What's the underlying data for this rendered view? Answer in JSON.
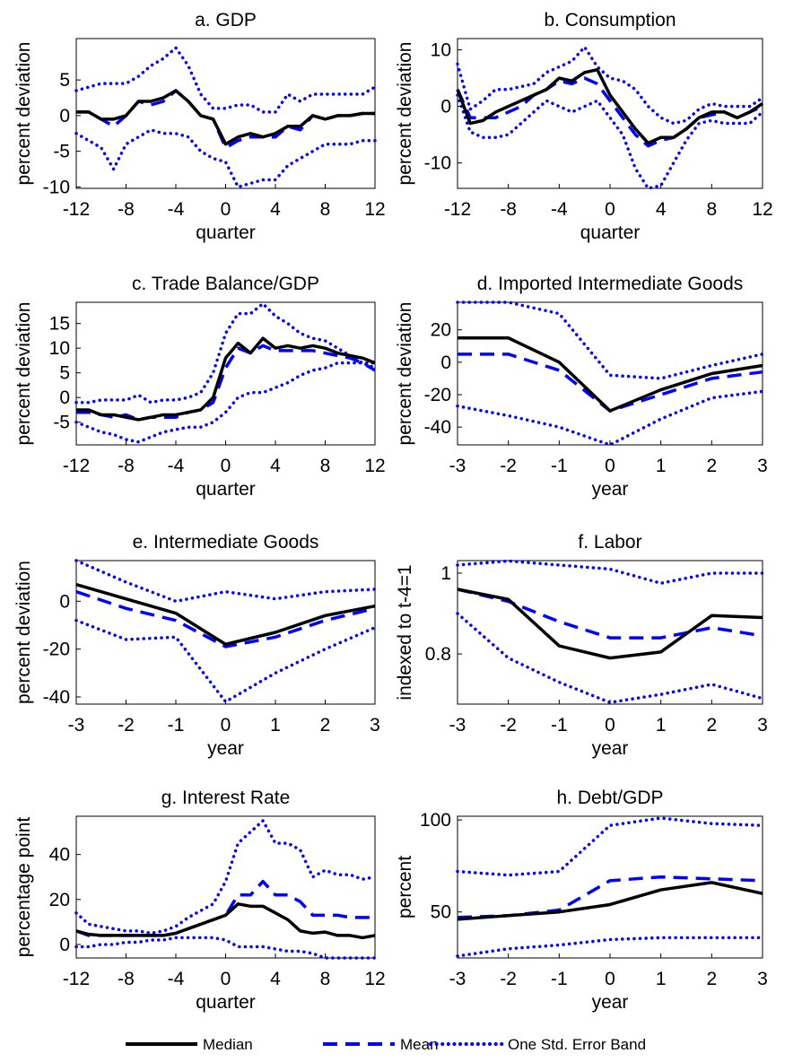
{
  "legend": [
    {
      "name": "Median",
      "color": "#000000",
      "dash": "solid"
    },
    {
      "name": "Mean",
      "color": "#0000ff",
      "dash": "dashed"
    },
    {
      "name": "One Std. Error Band",
      "color": "#0000ff",
      "dash": "dotted"
    }
  ],
  "chart_data": [
    {
      "type": "line",
      "title": "a. GDP",
      "xlabel": "quarter",
      "ylabel": "percent deviation",
      "x": [
        -12,
        -11,
        -10,
        -9,
        -8,
        -7,
        -6,
        -5,
        -4,
        -3,
        -2,
        -1,
        0,
        1,
        2,
        3,
        4,
        5,
        6,
        7,
        8,
        9,
        10,
        11,
        12
      ],
      "xlim": [
        -12,
        12
      ],
      "xticks": [
        -12,
        -8,
        -4,
        0,
        4,
        8,
        12
      ],
      "ylim": [
        -10.2,
        10.8
      ],
      "yticks": [
        -10,
        -5,
        0,
        5
      ],
      "median": [
        0.5,
        0.5,
        -0.5,
        -0.5,
        0,
        2,
        2,
        2.5,
        3.5,
        2,
        0,
        -0.5,
        -4,
        -3,
        -2.5,
        -3,
        -2.5,
        -1.5,
        -1.5,
        0,
        -0.5,
        0,
        0,
        0.3,
        0.3
      ],
      "mean": [
        0.5,
        0.5,
        -0.5,
        -1.5,
        0,
        2,
        1.5,
        2,
        3.5,
        2,
        0,
        -0.5,
        -4.5,
        -3.5,
        -3,
        -3,
        -3,
        -1.5,
        -2,
        0,
        -0.5,
        0,
        0,
        0.3,
        0.3
      ],
      "band_upper": [
        3.5,
        4,
        4.5,
        4.5,
        4.5,
        5.5,
        7,
        8,
        9.5,
        7,
        3,
        1,
        1,
        1.5,
        1.5,
        0.5,
        0.5,
        3,
        2,
        3,
        3,
        3,
        3,
        3,
        4
      ],
      "band_lower": [
        -2.5,
        -3.5,
        -4.5,
        -7.5,
        -4,
        -3,
        -2,
        -2.5,
        -2.5,
        -3,
        -5,
        -6,
        -6.5,
        -10,
        -9.5,
        -9,
        -9,
        -7,
        -6,
        -5,
        -4,
        -4,
        -4,
        -3.5,
        -3.5
      ]
    },
    {
      "type": "line",
      "title": "b. Consumption",
      "xlabel": "quarter",
      "ylabel": "percent deviation",
      "x": [
        -12,
        -11,
        -10,
        -9,
        -8,
        -7,
        -6,
        -5,
        -4,
        -3,
        -2,
        -1,
        0,
        1,
        2,
        3,
        4,
        5,
        6,
        7,
        8,
        9,
        10,
        11,
        12
      ],
      "xlim": [
        -12,
        12
      ],
      "xticks": [
        -12,
        -8,
        -4,
        0,
        4,
        8,
        12
      ],
      "ylim": [
        -14.5,
        12
      ],
      "yticks": [
        -10,
        0,
        10
      ],
      "median": [
        3,
        -3,
        -2.5,
        -1,
        0,
        1,
        2,
        3,
        5,
        4.5,
        6,
        6.5,
        2,
        -1,
        -4,
        -6.5,
        -5.5,
        -5.5,
        -4,
        -2,
        -1,
        -1,
        -2,
        -1,
        0.5
      ],
      "mean": [
        3,
        -2,
        -2,
        -2,
        -1,
        0,
        2,
        3,
        4.5,
        4,
        5,
        4,
        1,
        -2,
        -5,
        -7,
        -6,
        -5.5,
        -4,
        -2,
        -1.5,
        -1,
        -2,
        -1,
        0
      ],
      "band_upper": [
        7.5,
        -0.5,
        1,
        3,
        3,
        3.5,
        4,
        6,
        7,
        8,
        10.5,
        7,
        5,
        4.5,
        3,
        0,
        -2,
        -3,
        -2.5,
        -0.5,
        0.5,
        0,
        0,
        0,
        1.5
      ],
      "band_lower": [
        2,
        -4.5,
        -5.5,
        -5.5,
        -5,
        -3,
        -1,
        1,
        0,
        -1,
        0,
        1,
        -2,
        -5,
        -11,
        -14.5,
        -14,
        -10,
        -6,
        -3,
        -2.5,
        -3,
        -3,
        -3,
        -1
      ]
    },
    {
      "type": "line",
      "title": "c. Trade Balance/GDP",
      "xlabel": "quarter",
      "ylabel": "percent deviation",
      "x": [
        -12,
        -11,
        -10,
        -9,
        -8,
        -7,
        -6,
        -5,
        -4,
        -3,
        -2,
        -1,
        0,
        1,
        2,
        3,
        4,
        5,
        6,
        7,
        8,
        9,
        10,
        11,
        12
      ],
      "xlim": [
        -12,
        12
      ],
      "xticks": [
        -12,
        -8,
        -4,
        0,
        4,
        8,
        12
      ],
      "ylim": [
        -9.6,
        19.3
      ],
      "yticks": [
        -5,
        0,
        5,
        10,
        15
      ],
      "median": [
        -2.5,
        -2.5,
        -3.5,
        -3.5,
        -4,
        -4.5,
        -4,
        -3.5,
        -3.5,
        -3,
        -2.5,
        0,
        8,
        11,
        9,
        12,
        10,
        10.5,
        10,
        10.5,
        10,
        9,
        8.5,
        8,
        7
      ],
      "mean": [
        -3,
        -3,
        -3.5,
        -4,
        -3.5,
        -4.5,
        -4,
        -4,
        -4,
        -3,
        -2.5,
        -1,
        6,
        10,
        9,
        10.5,
        9.5,
        9.5,
        9.5,
        9.5,
        9,
        8.5,
        8,
        7,
        5.5
      ],
      "band_upper": [
        -1,
        -1,
        -0.5,
        -0.5,
        -0.5,
        0.5,
        -1,
        -0.5,
        -0.5,
        0,
        1,
        5,
        13,
        17,
        17,
        19,
        16.5,
        15,
        13,
        12,
        11.5,
        10,
        8.5,
        7,
        7
      ],
      "band_lower": [
        -5,
        -6,
        -7,
        -7.5,
        -8.5,
        -9,
        -8,
        -7,
        -6.5,
        -6,
        -6,
        -5,
        -3,
        0,
        1,
        1,
        2,
        3,
        4.5,
        5.5,
        6,
        7,
        7,
        7,
        6
      ]
    },
    {
      "type": "line",
      "title": "d. Imported Intermediate Goods",
      "xlabel": "year",
      "ylabel": "percent deviation",
      "x": [
        -3,
        -2,
        -1,
        0,
        1,
        2,
        3
      ],
      "xlim": [
        -3,
        3
      ],
      "xticks": [
        -3,
        -2,
        -1,
        0,
        1,
        2,
        3
      ],
      "ylim": [
        -51,
        37
      ],
      "yticks": [
        -40,
        -20,
        0,
        20
      ],
      "median": [
        15,
        15,
        0,
        -30,
        -17,
        -7,
        -2
      ],
      "mean": [
        5,
        5,
        -5,
        -30,
        -20,
        -10,
        -6
      ],
      "band_upper": [
        37,
        37,
        30,
        -8,
        -10,
        -2,
        5
      ],
      "band_lower": [
        -27,
        -33,
        -40,
        -51,
        -35,
        -22,
        -18
      ]
    },
    {
      "type": "line",
      "title": "e. Intermediate Goods",
      "xlabel": "year",
      "ylabel": "percent deviation",
      "x": [
        -3,
        -2,
        -1,
        0,
        1,
        2,
        3
      ],
      "xlim": [
        -3,
        3
      ],
      "xticks": [
        -3,
        -2,
        -1,
        0,
        1,
        2,
        3
      ],
      "ylim": [
        -43,
        17
      ],
      "yticks": [
        -40,
        -20,
        0
      ],
      "median": [
        7,
        1,
        -5,
        -18,
        -13,
        -6,
        -2
      ],
      "mean": [
        4,
        -3,
        -8,
        -19,
        -15,
        -8,
        -3
      ],
      "band_upper": [
        17,
        8,
        0,
        4,
        1,
        4,
        5
      ],
      "band_lower": [
        -8,
        -16,
        -15,
        -42,
        -30,
        -20,
        -11
      ]
    },
    {
      "type": "line",
      "title": "f. Labor",
      "xlabel": "year",
      "ylabel": "indexed to t-4=1",
      "x": [
        -3,
        -2,
        -1,
        0,
        1,
        2,
        3
      ],
      "xlim": [
        -3,
        3
      ],
      "xticks": [
        -3,
        -2,
        -1,
        0,
        1,
        2,
        3
      ],
      "ylim": [
        0.676,
        1.031
      ],
      "yticks": [
        0.8,
        1
      ],
      "median": [
        0.96,
        0.935,
        0.82,
        0.79,
        0.805,
        0.895,
        0.89
      ],
      "mean": [
        0.96,
        0.93,
        0.88,
        0.84,
        0.84,
        0.865,
        0.845
      ],
      "band_upper": [
        1.02,
        1.03,
        1.02,
        1.01,
        0.975,
        1.0,
        1.0
      ],
      "band_lower": [
        0.9,
        0.79,
        0.73,
        0.68,
        0.7,
        0.725,
        0.69
      ]
    },
    {
      "type": "line",
      "title": "g. Interest Rate",
      "xlabel": "quarter",
      "ylabel": "percentage point",
      "x": [
        -12,
        -11,
        -10,
        -9,
        -8,
        -7,
        -6,
        -5,
        -4,
        -3,
        -2,
        -1,
        0,
        1,
        2,
        3,
        4,
        5,
        6,
        7,
        8,
        9,
        10,
        11,
        12
      ],
      "xlim": [
        -12,
        12
      ],
      "xticks": [
        -12,
        -8,
        -4,
        0,
        4,
        8,
        12
      ],
      "ylim": [
        -6,
        57
      ],
      "yticks": [
        0,
        20,
        40
      ],
      "median": [
        6,
        4.5,
        4,
        4,
        4,
        4,
        4,
        4,
        5,
        7,
        9,
        11,
        13,
        18,
        17,
        17,
        14,
        11,
        6,
        5,
        5.5,
        4,
        4,
        3,
        4
      ],
      "mean": [
        6,
        4,
        4,
        4,
        4,
        4,
        4,
        4,
        5,
        7,
        9,
        11,
        13,
        22,
        22,
        28,
        22,
        22,
        19,
        13,
        13,
        13,
        12,
        12,
        12
      ],
      "band_upper": [
        14,
        9,
        8,
        7,
        6,
        6,
        5,
        6,
        8,
        12,
        15,
        18,
        28,
        45,
        50,
        55,
        45,
        45,
        42,
        30,
        33,
        31,
        31,
        29,
        30
      ],
      "band_lower": [
        -1,
        -1,
        0,
        0,
        1,
        1,
        2,
        2,
        3,
        3,
        3,
        3,
        2,
        -1,
        -1,
        -1,
        -2,
        -3,
        -3,
        -4,
        -6,
        -6,
        -6,
        -6,
        -6
      ]
    },
    {
      "type": "line",
      "title": "h. Debt/GDP",
      "xlabel": "year",
      "ylabel": "percent",
      "x": [
        -3,
        -2,
        -1,
        0,
        1,
        2,
        3
      ],
      "xlim": [
        -3,
        3
      ],
      "xticks": [
        -3,
        -2,
        -1,
        0,
        1,
        2,
        3
      ],
      "ylim": [
        25,
        102
      ],
      "yticks": [
        50,
        100
      ],
      "median": [
        46,
        48,
        50,
        54,
        62,
        66,
        60
      ],
      "mean": [
        47,
        48,
        51,
        67,
        69,
        68,
        67
      ],
      "band_upper": [
        72,
        70,
        72,
        97,
        101,
        98,
        97
      ],
      "band_lower": [
        26,
        30,
        32,
        35,
        36,
        36,
        36
      ]
    }
  ]
}
